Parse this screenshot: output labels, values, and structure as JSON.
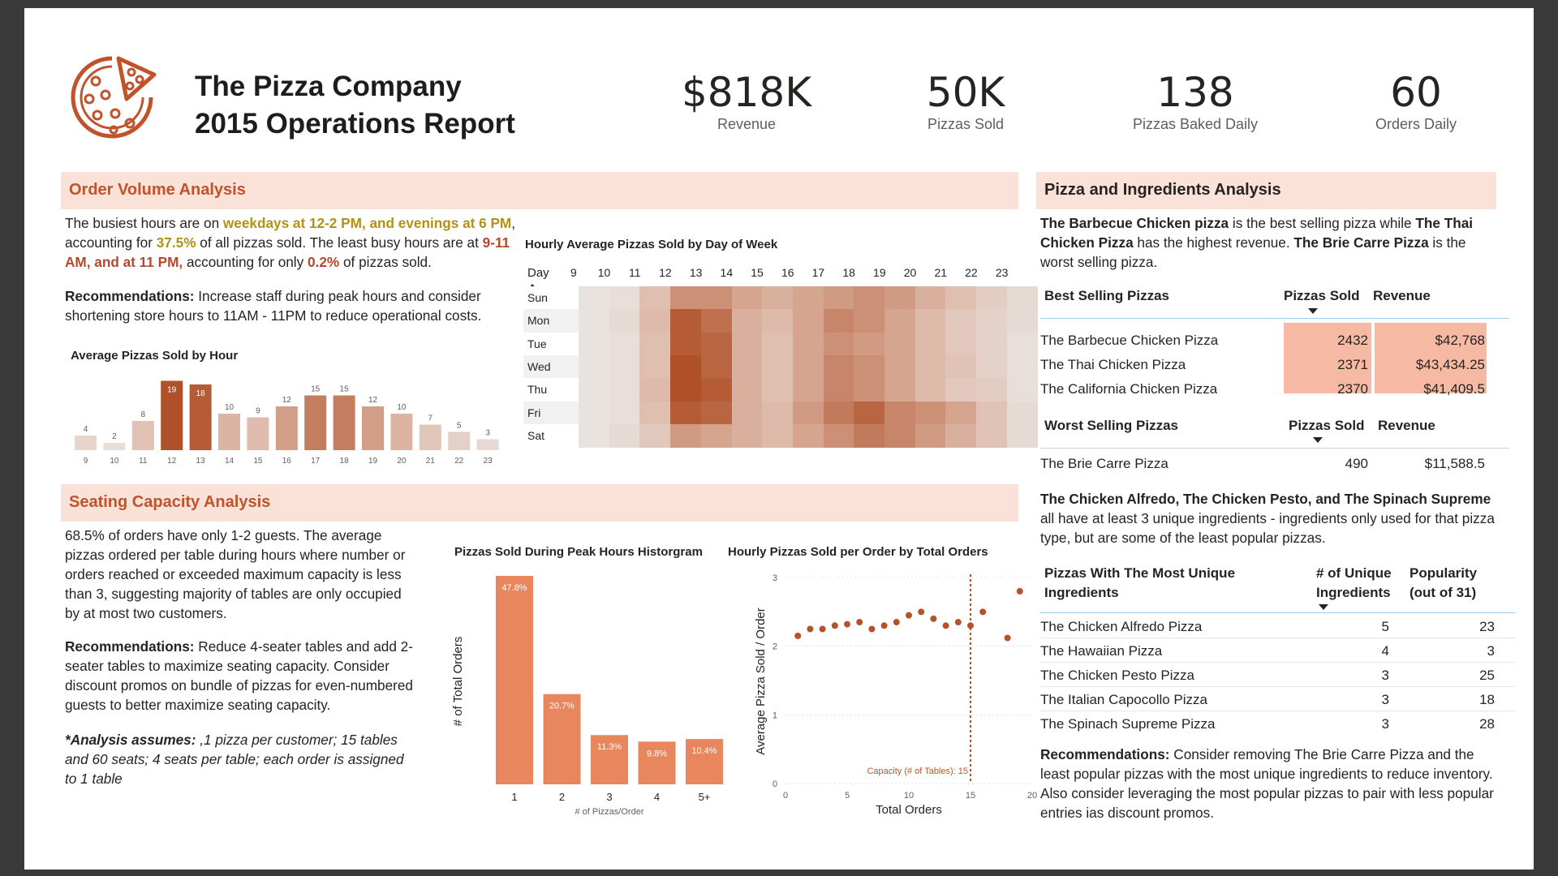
{
  "header": {
    "title_line1": "The Pizza Company",
    "title_line2": "2015 Operations Report",
    "kpis": [
      {
        "value": "$818K",
        "label": "Revenue"
      },
      {
        "value": "50K",
        "label": "Pizzas Sold"
      },
      {
        "value": "138",
        "label": "Pizzas Baked Daily"
      },
      {
        "value": "60",
        "label": "Orders Daily"
      }
    ]
  },
  "order_volume": {
    "section_title": "Order Volume Analysis",
    "p1_a": "The busiest hours are on ",
    "p1_b": "weekdays at 12-2 PM, and evenings at 6 PM",
    "p1_c": ", accounting for ",
    "p1_d": "37.5%",
    "p1_e": " of all pizzas sold. The least busy hours are at ",
    "p1_f": "9-11 AM, and at 11 PM,",
    "p1_g": " accounting for only ",
    "p1_h": "0.2%",
    "p1_i": " of pizzas sold.",
    "rec_label": "Recommendations:",
    "rec_text": " Increase staff during peak hours and consider shortening store hours to 11AM - 11PM to reduce operational costs.",
    "bar_title": "Average Pizzas Sold by Hour",
    "heatmap_title": "Hourly Average Pizzas Sold by Day of Week",
    "heatmap_day_header": "Day"
  },
  "seating": {
    "section_title": "Seating Capacity Analysis",
    "p1": "68.5% of orders have only 1-2 guests. The average pizzas ordered per table during hours where number or orders reached or exceeded maximum capacity is less than 3, suggesting majority of tables are only occupied by at most two customers.",
    "rec_label": "Recommendations:",
    "rec_text": " Reduce 4-seater tables and add 2-seater tables to maximize seating capacity. Consider discount promos on bundle of pizzas for even-numbered guests to better maximize seating capacity.",
    "assume_label": "*Analysis assumes:",
    "assume_text": " ,1 pizza per customer; 15 tables and 60 seats; 4 seats per table; each order is assigned to 1 table",
    "hist_title": "Pizzas Sold During Peak Hours Historgram",
    "scatter_title": "Hourly Pizzas Sold per Order by Total Orders",
    "capacity_label": "Capacity (# of Tables): 15"
  },
  "pizza_analysis": {
    "section_title": "Pizza and Ingredients Analysis",
    "p1_a": "The Barbecue Chicken pizza",
    "p1_b": " is the best selling pizza while ",
    "p1_c": "The Thai Chicken Pizza",
    "p1_d": "  has the highest revenue. ",
    "p1_e": "The Brie Carre Pizza",
    "p1_f": " is the worst selling pizza.",
    "best_table": {
      "headers": [
        "Best Selling Pizzas",
        "Pizzas Sold",
        "Revenue"
      ],
      "rows": [
        [
          "The Barbecue Chicken Pizza",
          "2432",
          "$42,768"
        ],
        [
          "The Thai Chicken Pizza",
          "2371",
          "$43,434.25"
        ],
        [
          "The California Chicken Pizza",
          "2370",
          "$41,409.5"
        ]
      ]
    },
    "worst_table": {
      "headers": [
        "Worst Selling Pizzas",
        "Pizzas Sold",
        "Revenue"
      ],
      "rows": [
        [
          "The Brie Carre Pizza",
          "490",
          "$11,588.5"
        ]
      ]
    },
    "p2_a": "The Chicken Alfredo, The Chicken Pesto, and The Spinach Supreme",
    "p2_b": " all have at least 3 unique ingredients - ingredients only used for that pizza type, but are some of the least popular pizzas.",
    "unique_table": {
      "h1a": "Pizzas With The Most Unique",
      "h1b": "Ingredients",
      "h2a": "# of Unique",
      "h2b": "Ingredients",
      "h3a": "Popularity",
      "h3b": "(out of 31)",
      "rows": [
        [
          "The Chicken Alfredo Pizza",
          "5",
          "23"
        ],
        [
          "The Hawaiian Pizza",
          "4",
          "3"
        ],
        [
          "The Chicken Pesto Pizza",
          "3",
          "25"
        ],
        [
          "The Italian Capocollo Pizza",
          "3",
          "18"
        ],
        [
          "The Spinach Supreme Pizza",
          "3",
          "28"
        ]
      ]
    },
    "rec_label": "Recommendations:",
    "rec_text": " Consider removing The Brie Carre Pizza and the least popular pizzas with the most unique ingredients to reduce inventory. Also consider leveraging the most popular pizzas to pair with less popular entries ias discount promos."
  },
  "colors": {
    "band": "#fbe2d8",
    "orange_title": "#c0532a",
    "peak_bar": "#b5522a",
    "bar_mid": "#d9a896",
    "hist_bar": "#e8875e",
    "scatter_dot": "#b5522a"
  },
  "chart_data": [
    {
      "type": "bar",
      "title": "Average Pizzas Sold by Hour",
      "categories": [
        "9",
        "10",
        "11",
        "12",
        "13",
        "14",
        "15",
        "16",
        "17",
        "18",
        "19",
        "20",
        "21",
        "22",
        "23"
      ],
      "values": [
        4,
        2,
        8,
        19,
        18,
        10,
        9,
        12,
        15,
        15,
        12,
        10,
        7,
        5,
        3
      ],
      "xlabel": "",
      "ylabel": ""
    },
    {
      "type": "heatmap",
      "title": "Hourly Average Pizzas Sold by Day of Week",
      "x": [
        "9",
        "10",
        "11",
        "12",
        "13",
        "14",
        "15",
        "16",
        "17",
        "18",
        "19",
        "20",
        "21",
        "22",
        "23"
      ],
      "y": [
        "Sun",
        "Mon",
        "Tue",
        "Wed",
        "Thu",
        "Fri",
        "Sat"
      ],
      "values": [
        [
          1,
          2,
          9,
          14,
          14,
          12,
          11,
          12,
          13,
          14,
          13,
          11,
          9,
          6,
          3
        ],
        [
          1,
          3,
          10,
          19,
          17,
          11,
          10,
          12,
          15,
          14,
          12,
          10,
          7,
          5,
          3
        ],
        [
          1,
          2,
          9,
          19,
          18,
          11,
          9,
          12,
          14,
          13,
          12,
          10,
          7,
          5,
          2
        ],
        [
          1,
          2,
          9,
          20,
          18,
          11,
          9,
          12,
          15,
          14,
          12,
          10,
          8,
          5,
          2
        ],
        [
          1,
          2,
          10,
          20,
          19,
          11,
          9,
          12,
          15,
          14,
          12,
          10,
          7,
          6,
          2
        ],
        [
          1,
          2,
          9,
          19,
          18,
          11,
          10,
          13,
          16,
          18,
          15,
          14,
          12,
          8,
          3
        ],
        [
          1,
          3,
          7,
          13,
          12,
          11,
          10,
          12,
          14,
          16,
          15,
          13,
          11,
          8,
          3
        ]
      ]
    },
    {
      "type": "bar",
      "title": "Pizzas Sold During Peak Hours Historgram",
      "categories": [
        "1",
        "2",
        "3",
        "4",
        "5+"
      ],
      "values": [
        47.8,
        20.7,
        11.3,
        9.8,
        10.4
      ],
      "data_labels": [
        "47.8%",
        "20.7%",
        "11.3%",
        "9.8%",
        "10.4%"
      ],
      "xlabel": "# of Pizzas/Order",
      "ylabel": "# of Total Orders"
    },
    {
      "type": "scatter",
      "title": "Hourly Pizzas Sold per Order by Total Orders",
      "x": [
        1,
        2,
        3,
        4,
        5,
        6,
        7,
        8,
        9,
        10,
        11,
        12,
        13,
        14,
        15,
        16,
        18,
        19
      ],
      "y": [
        2.15,
        2.25,
        2.25,
        2.3,
        2.32,
        2.35,
        2.25,
        2.3,
        2.35,
        2.45,
        2.5,
        2.4,
        2.3,
        2.35,
        2.3,
        2.5,
        2.12,
        2.8
      ],
      "xlabel": "Total Orders",
      "ylabel": "Average Pizza Sold / Order",
      "xlim": [
        0,
        20
      ],
      "ylim": [
        0,
        3
      ],
      "xticks": [
        0,
        5,
        10,
        15,
        20
      ],
      "yticks": [
        0,
        1,
        2,
        3
      ],
      "reference_line_x": 15
    }
  ]
}
